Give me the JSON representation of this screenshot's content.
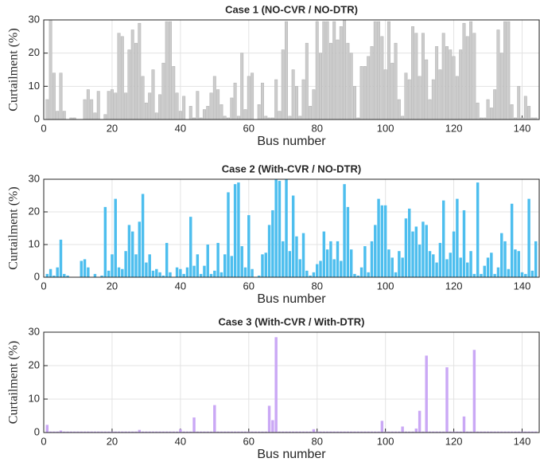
{
  "chart_data": [
    {
      "type": "bar",
      "title": "Case 1 (NO-CVR / NO-DTR)",
      "xlabel": "Bus number",
      "ylabel": "Curtailment (%)",
      "x": [
        1,
        2,
        3,
        4,
        5,
        6,
        7,
        8,
        9,
        10,
        11,
        12,
        13,
        14,
        15,
        16,
        17,
        18,
        19,
        20,
        21,
        22,
        23,
        24,
        25,
        26,
        27,
        28,
        29,
        30,
        31,
        32,
        33,
        34,
        35,
        36,
        37,
        38,
        39,
        40,
        41,
        42,
        43,
        44,
        45,
        46,
        47,
        48,
        49,
        50,
        51,
        52,
        53,
        54,
        55,
        56,
        57,
        58,
        59,
        60,
        61,
        62,
        63,
        64,
        65,
        66,
        67,
        68,
        69,
        70,
        71,
        72,
        73,
        74,
        75,
        76,
        77,
        78,
        79,
        80,
        81,
        82,
        83,
        84,
        85,
        86,
        87,
        88,
        89,
        90,
        91,
        92,
        93,
        94,
        95,
        96,
        97,
        98,
        99,
        100,
        101,
        102,
        103,
        104,
        105,
        106,
        107,
        108,
        109,
        110,
        111,
        112,
        113,
        114,
        115,
        116,
        117,
        118,
        119,
        120,
        121,
        122,
        123,
        124,
        125,
        126,
        127,
        128,
        129,
        130,
        131,
        132,
        133,
        134,
        135,
        136,
        137,
        138,
        139,
        140,
        141,
        142,
        143,
        144
      ],
      "values": [
        6,
        30,
        14,
        2.5,
        14,
        2.5,
        0,
        0.5,
        0.5,
        0,
        0,
        6,
        9,
        6,
        2,
        8.5,
        0,
        1.5,
        8.5,
        9,
        8,
        26,
        25,
        8,
        21,
        27,
        23,
        29,
        13,
        5,
        8,
        15,
        2,
        7.5,
        17,
        29.5,
        29.5,
        16,
        8,
        2.5,
        7,
        0,
        4,
        0.5,
        8.5,
        0.5,
        3,
        4,
        8,
        13,
        9,
        4.5,
        1,
        0.5,
        6.5,
        11,
        1,
        20,
        3,
        13,
        14,
        0,
        4.5,
        11,
        1,
        0.5,
        0.5,
        12,
        2.5,
        21,
        29.5,
        1,
        15,
        10,
        1,
        12,
        23,
        4,
        9,
        29.5,
        20,
        29.5,
        29.5,
        23,
        29.5,
        24,
        28,
        30,
        23,
        20,
        10,
        0.5,
        16,
        16,
        19,
        22,
        29.5,
        29.5,
        25,
        15,
        29.5,
        17,
        23,
        6,
        1,
        14,
        12,
        28,
        26,
        13,
        26,
        18,
        6,
        12,
        22,
        15,
        26,
        22,
        21,
        19,
        13,
        21,
        29,
        25,
        29.5,
        26,
        5,
        0.5,
        0.5,
        6,
        3.5,
        9,
        27,
        20,
        29.5,
        29.5,
        4.5,
        0.5,
        10,
        0.5,
        7,
        4,
        0.5,
        0.5
      ],
      "color": "#cccccc",
      "xlim": [
        0,
        145
      ],
      "ylim": [
        0,
        30
      ],
      "xticks": [
        0,
        20,
        40,
        60,
        80,
        100,
        120,
        140
      ],
      "yticks": [
        0,
        10,
        20,
        30
      ],
      "grid": true
    },
    {
      "type": "bar",
      "title": "Case 2 (With-CVR / NO-DTR)",
      "xlabel": "Bus number",
      "ylabel": "Curtailment (%)",
      "x": [
        1,
        2,
        3,
        4,
        5,
        6,
        7,
        8,
        9,
        10,
        11,
        12,
        13,
        14,
        15,
        16,
        17,
        18,
        19,
        20,
        21,
        22,
        23,
        24,
        25,
        26,
        27,
        28,
        29,
        30,
        31,
        32,
        33,
        34,
        35,
        36,
        37,
        38,
        39,
        40,
        41,
        42,
        43,
        44,
        45,
        46,
        47,
        48,
        49,
        50,
        51,
        52,
        53,
        54,
        55,
        56,
        57,
        58,
        59,
        60,
        61,
        62,
        63,
        64,
        65,
        66,
        67,
        68,
        69,
        70,
        71,
        72,
        73,
        74,
        75,
        76,
        77,
        78,
        79,
        80,
        81,
        82,
        83,
        84,
        85,
        86,
        87,
        88,
        89,
        90,
        91,
        92,
        93,
        94,
        95,
        96,
        97,
        98,
        99,
        100,
        101,
        102,
        103,
        104,
        105,
        106,
        107,
        108,
        109,
        110,
        111,
        112,
        113,
        114,
        115,
        116,
        117,
        118,
        119,
        120,
        121,
        122,
        123,
        124,
        125,
        126,
        127,
        128,
        129,
        130,
        131,
        132,
        133,
        134,
        135,
        136,
        137,
        138,
        139,
        140,
        141,
        142,
        143,
        144
      ],
      "values": [
        1,
        2.5,
        0.5,
        3,
        11.5,
        1,
        0.5,
        0,
        0,
        0,
        5,
        5.5,
        3,
        0,
        1,
        0,
        0.5,
        21.5,
        2,
        7,
        24,
        3,
        2.5,
        8,
        16,
        14,
        7,
        17,
        25.5,
        4.5,
        7,
        2,
        2.5,
        1.5,
        0.5,
        10.5,
        1.5,
        0,
        3,
        2.5,
        1,
        3,
        18.5,
        3.5,
        7,
        1,
        3.5,
        10,
        1,
        2,
        10.5,
        1.5,
        7,
        26,
        6.5,
        28.5,
        29,
        9.5,
        3,
        19,
        2.5,
        0,
        0.5,
        7,
        7.5,
        16,
        20.5,
        30,
        29.5,
        11,
        30,
        8,
        25,
        12.5,
        5.5,
        13.5,
        2,
        0.5,
        1.5,
        4,
        5,
        14,
        8.5,
        11,
        5.5,
        11,
        5,
        28.5,
        21.5,
        8.5,
        1,
        0.5,
        3,
        9.5,
        1.5,
        11,
        16,
        24,
        22,
        22,
        8.5,
        6,
        1.5,
        8,
        6,
        18,
        21,
        14,
        15.5,
        10,
        17,
        16,
        8,
        7,
        4.5,
        10.5,
        23.5,
        5.5,
        7.5,
        14,
        24,
        6,
        20.5,
        4.5,
        8,
        1,
        29,
        1,
        3.5,
        6,
        7.5,
        1,
        3,
        13.5,
        11,
        2.5,
        22.5,
        8.5,
        8,
        1.5,
        1,
        24,
        2,
        11
      ],
      "color": "#4dbeee",
      "xlim": [
        0,
        145
      ],
      "ylim": [
        0,
        30
      ],
      "xticks": [
        0,
        20,
        40,
        60,
        80,
        100,
        120,
        140
      ],
      "yticks": [
        0,
        10,
        20,
        30
      ],
      "grid": true
    },
    {
      "type": "bar",
      "title": "Case 3 (With-CVR / With-DTR)",
      "xlabel": "Bus number",
      "ylabel": "Curtailment (%)",
      "x": [
        1,
        2,
        3,
        4,
        5,
        6,
        7,
        8,
        9,
        10,
        11,
        12,
        13,
        14,
        15,
        16,
        17,
        18,
        19,
        20,
        21,
        22,
        23,
        24,
        25,
        26,
        27,
        28,
        29,
        30,
        31,
        32,
        33,
        34,
        35,
        36,
        37,
        38,
        39,
        40,
        41,
        42,
        43,
        44,
        45,
        46,
        47,
        48,
        49,
        50,
        51,
        52,
        53,
        54,
        55,
        56,
        57,
        58,
        59,
        60,
        61,
        62,
        63,
        64,
        65,
        66,
        67,
        68,
        69,
        70,
        71,
        72,
        73,
        74,
        75,
        76,
        77,
        78,
        79,
        80,
        81,
        82,
        83,
        84,
        85,
        86,
        87,
        88,
        89,
        90,
        91,
        92,
        93,
        94,
        95,
        96,
        97,
        98,
        99,
        100,
        101,
        102,
        103,
        104,
        105,
        106,
        107,
        108,
        109,
        110,
        111,
        112,
        113,
        114,
        115,
        116,
        117,
        118,
        119,
        120,
        121,
        122,
        123,
        124,
        125,
        126,
        127,
        128,
        129,
        130,
        131,
        132,
        133,
        134,
        135,
        136,
        137,
        138,
        139,
        140,
        141,
        142,
        143,
        144
      ],
      "values": [
        2.3,
        0.3,
        0.3,
        0.3,
        0.6,
        0.3,
        0.3,
        0.3,
        0.3,
        0.3,
        0.3,
        0.3,
        0.3,
        0.3,
        0.3,
        0.3,
        0.3,
        0.3,
        0.3,
        0.3,
        0.3,
        0.3,
        0.3,
        0.3,
        0.3,
        0.3,
        0.3,
        0.8,
        0.3,
        0.3,
        0.3,
        0.3,
        0.3,
        0.3,
        0.3,
        0.3,
        0.3,
        0.3,
        0.3,
        1,
        0.3,
        0.3,
        0.3,
        4.5,
        0.3,
        0.3,
        0.3,
        0.3,
        0.3,
        8.2,
        0.3,
        0.3,
        0.3,
        0.3,
        0.3,
        0.3,
        0.3,
        0.3,
        0.3,
        0.3,
        0.3,
        0.3,
        0.3,
        0.3,
        0.3,
        8,
        3.7,
        28.5,
        0.3,
        0.3,
        0.3,
        0.3,
        0.3,
        0.3,
        0.3,
        0.3,
        0.3,
        0.3,
        1,
        0.3,
        0.3,
        0.3,
        0.3,
        0.3,
        0.3,
        0.3,
        0.3,
        0.3,
        0.3,
        0.3,
        0.3,
        0.3,
        0.3,
        0.3,
        0.3,
        0.3,
        0.3,
        0.3,
        3.5,
        0.3,
        0.3,
        0.3,
        0.3,
        0.3,
        1.8,
        0.3,
        0.3,
        0.3,
        1.2,
        6.5,
        0.3,
        23,
        0.3,
        0.3,
        0.3,
        0.3,
        0.3,
        19.5,
        0.3,
        0.3,
        0.3,
        0.3,
        4.8,
        0.3,
        0.3,
        24.7,
        0.3,
        0.3,
        0.3,
        0.3,
        0.3,
        0.3,
        0.3,
        0.3,
        0.3,
        0.3,
        0.3,
        0.3,
        0.3,
        0.3,
        0.3,
        0.3,
        0.3,
        0.3
      ],
      "color": "#caa8f5",
      "xlim": [
        0,
        145
      ],
      "ylim": [
        0,
        30
      ],
      "xticks": [
        0,
        20,
        40,
        60,
        80,
        100,
        120,
        140
      ],
      "yticks": [
        0,
        10,
        20,
        30
      ],
      "grid": true
    }
  ]
}
